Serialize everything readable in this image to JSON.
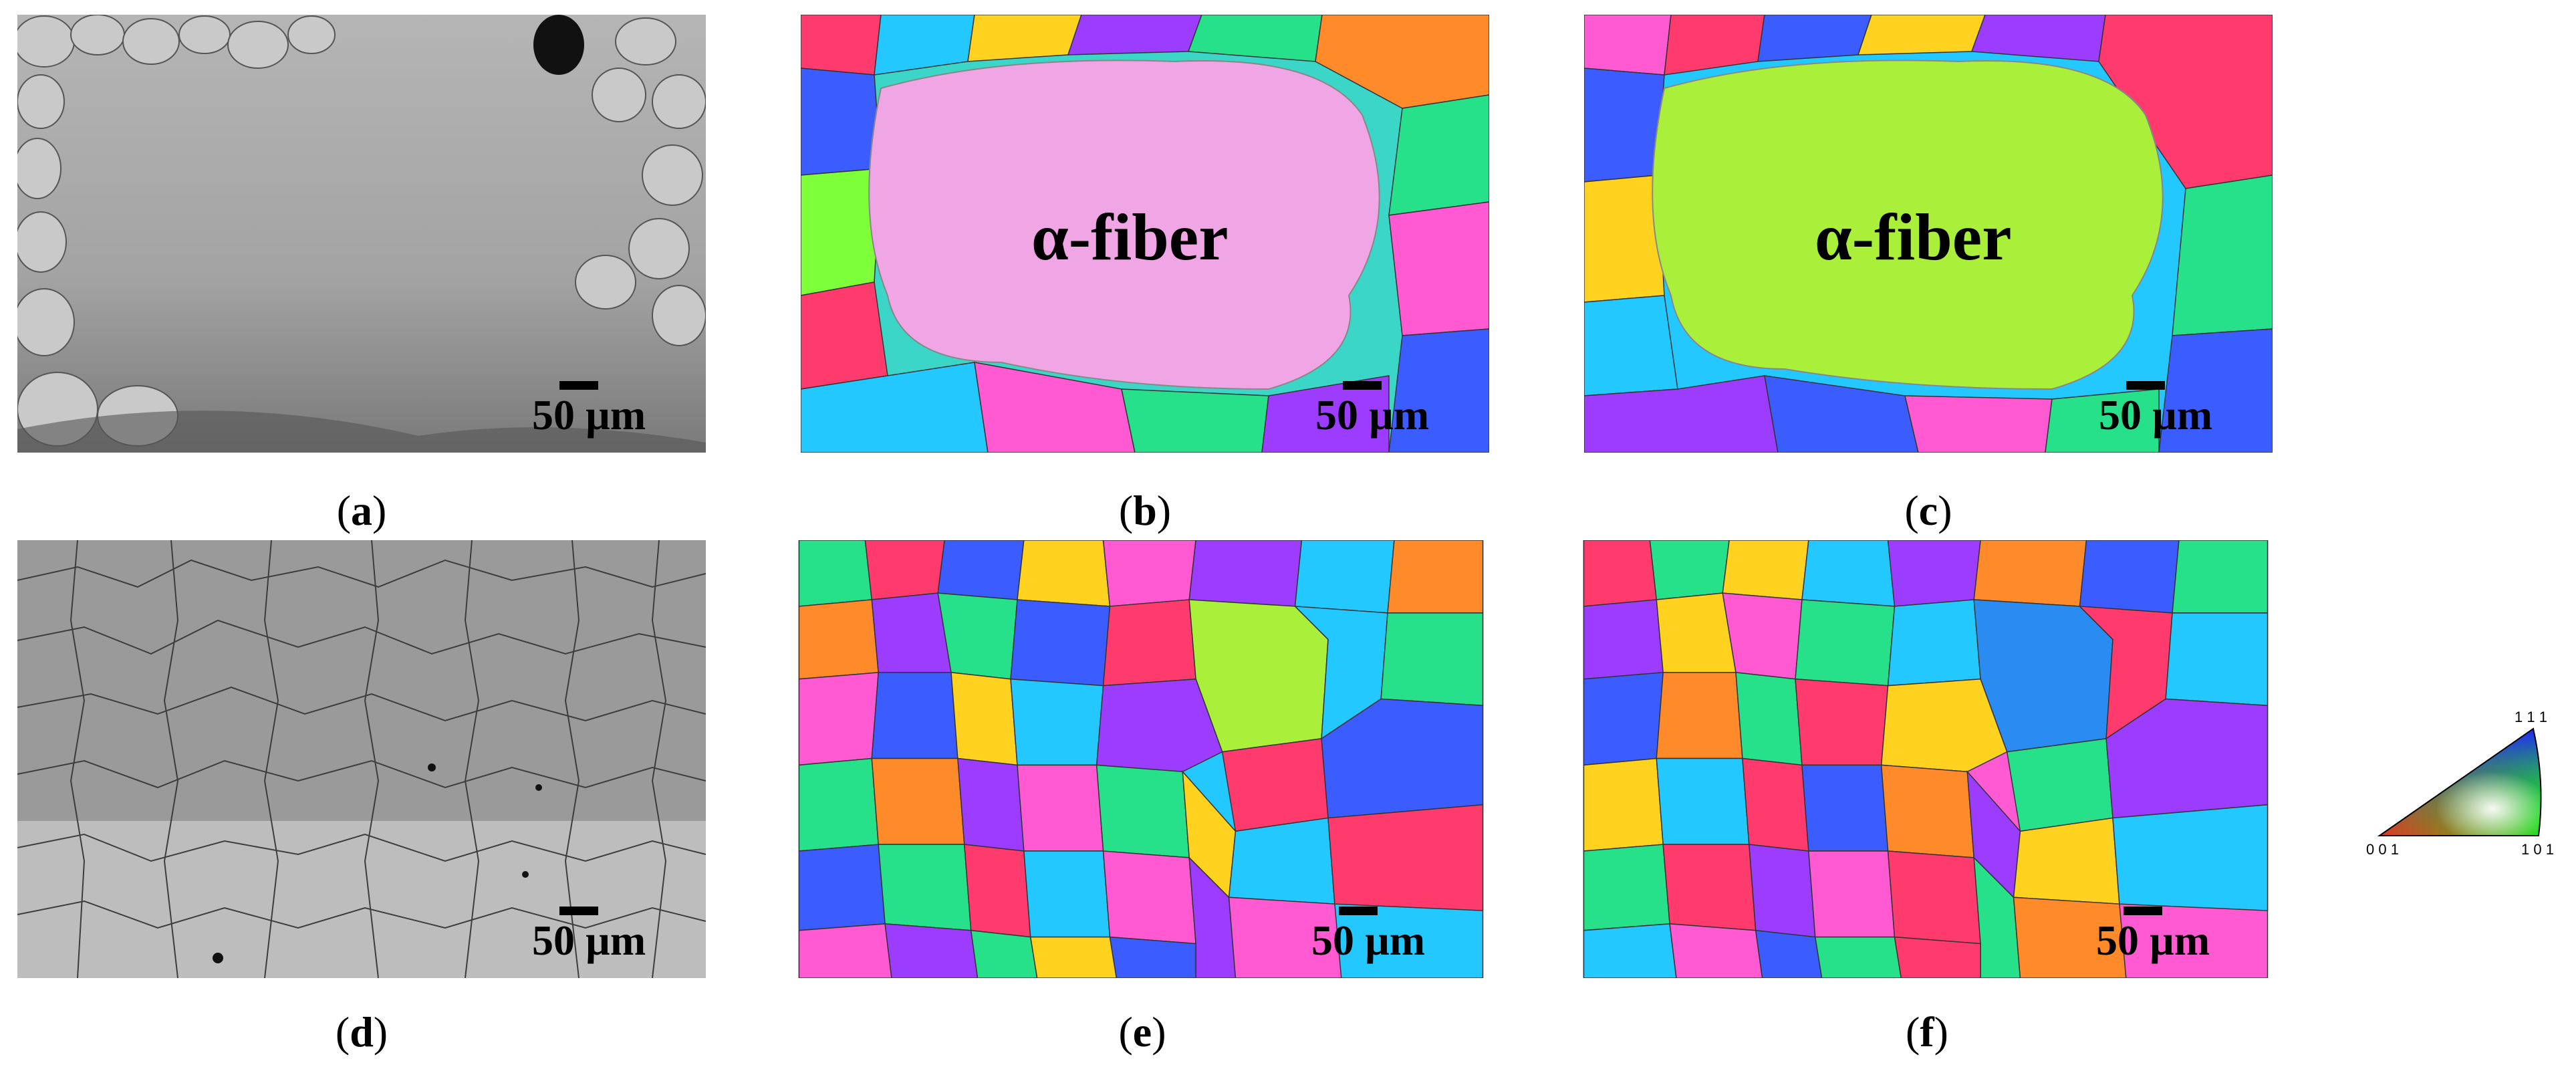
{
  "panels": {
    "a": {
      "label": "a",
      "scale": "50 µm",
      "type": "grayscale"
    },
    "b": {
      "label": "b",
      "scale": "50 µm",
      "annotation": "α-fiber",
      "type": "ipf"
    },
    "c": {
      "label": "c",
      "scale": "50 µm",
      "annotation": "α-fiber",
      "type": "ipf"
    },
    "d": {
      "label": "d",
      "scale": "50 µm",
      "type": "grayscale"
    },
    "e": {
      "label": "e",
      "scale": "50 µm",
      "type": "ipf"
    },
    "f": {
      "label": "f",
      "scale": "50 µm",
      "type": "ipf"
    }
  },
  "legend": {
    "corner_001": "0 0 1",
    "corner_101": "1 0 1",
    "corner_111": "1 1 1"
  },
  "colors": {
    "b_central_grain": "#f0a6e4",
    "c_central_grain": "#aaf03a",
    "palette": [
      "#ff3b6e",
      "#3b5cff",
      "#27e08a",
      "#ffd21f",
      "#9b3cff",
      "#22c8ff",
      "#ff8a2a",
      "#7dff3a",
      "#ff5ad1",
      "#2af0d0"
    ]
  }
}
